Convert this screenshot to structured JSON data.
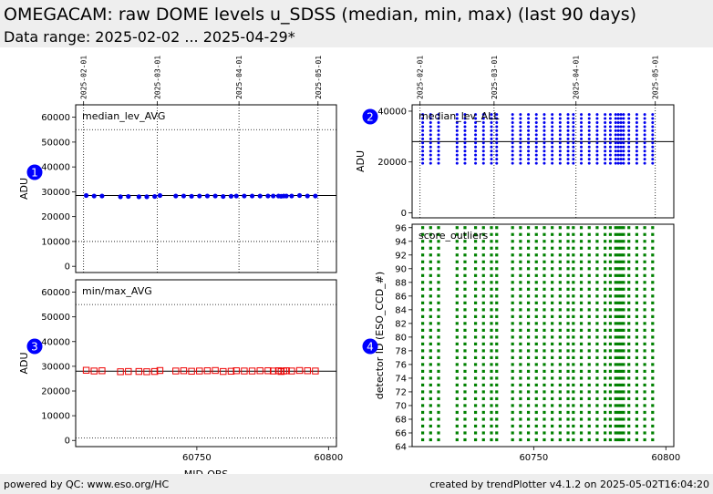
{
  "header": {
    "title": "OMEGACAM: raw DOME levels u_SDSS (median, min, max) (last 90 days)",
    "subtitle": "Data range: 2025-02-02 ... 2025-04-29*"
  },
  "footer": {
    "left": "powered by QC: www.eso.org/HC",
    "right": "created by trendPlotter v4.1.2 on 2025-05-02T16:04:20"
  },
  "colors": {
    "median": "#0000ee",
    "minmax": "#ee0000",
    "outliers": "#008000",
    "badge": "#0000ff",
    "bar": "#eeeeee"
  },
  "chart_data": [
    {
      "id": "1",
      "type": "scatter",
      "annotation": "median_lev_AVG",
      "ylabel": "ADU",
      "xlim": [
        60704,
        60803
      ],
      "ylim": [
        -2500,
        65000
      ],
      "yticks": [
        0,
        10000,
        20000,
        30000,
        40000,
        50000,
        60000
      ],
      "xticks": [],
      "date_ticks": [
        {
          "x": 60707,
          "label": "2025-02-01"
        },
        {
          "x": 60735,
          "label": "2025-03-01"
        },
        {
          "x": 60766,
          "label": "2025-04-01"
        },
        {
          "x": 60796,
          "label": "2025-05-01"
        }
      ],
      "hlines": [
        {
          "y": 28500,
          "style": "solid"
        },
        {
          "y": 55000,
          "style": "dotted"
        },
        {
          "y": 10000,
          "style": "dotted"
        }
      ],
      "series": [
        {
          "marker": "circle",
          "color": "#0000ee",
          "x": [
            60708,
            60711,
            60714,
            60721,
            60724,
            60728,
            60731,
            60734,
            60736,
            60742,
            60745,
            60748,
            60751,
            60754,
            60757,
            60760,
            60763,
            60765,
            60768,
            60771,
            60774,
            60777,
            60779,
            60781,
            60782,
            60783,
            60784,
            60786,
            60789,
            60792,
            60795
          ],
          "y": [
            28500,
            28300,
            28300,
            28000,
            28100,
            28000,
            28000,
            28100,
            28500,
            28300,
            28300,
            28200,
            28300,
            28300,
            28300,
            28100,
            28200,
            28300,
            28300,
            28300,
            28300,
            28300,
            28300,
            28300,
            28200,
            28300,
            28300,
            28300,
            28500,
            28300,
            28300
          ]
        }
      ]
    },
    {
      "id": "2",
      "type": "scatter",
      "annotation": "median_lev_ALL",
      "ylabel": "ADU",
      "xlim": [
        60704,
        60803
      ],
      "ylim": [
        -2000,
        42500
      ],
      "yticks": [
        0,
        20000,
        40000
      ],
      "xticks": [],
      "date_ticks": [
        {
          "x": 60707,
          "label": "2025-02-01"
        },
        {
          "x": 60735,
          "label": "2025-03-01"
        },
        {
          "x": 60766,
          "label": "2025-04-01"
        },
        {
          "x": 60796,
          "label": "2025-05-01"
        }
      ],
      "hlines": [
        {
          "y": 28000,
          "style": "solid"
        }
      ],
      "strips": {
        "x": [
          60708,
          60711,
          60714,
          60721,
          60724,
          60728,
          60731,
          60734,
          60736,
          60742,
          60745,
          60748,
          60751,
          60754,
          60757,
          60760,
          60763,
          60765,
          60768,
          60771,
          60774,
          60777,
          60779,
          60781,
          60782,
          60783,
          60784,
          60786,
          60789,
          60792,
          60795
        ],
        "ymin": 19500,
        "ymax": 39500,
        "color": "#0000ee"
      }
    },
    {
      "id": "3",
      "type": "scatter",
      "annotation": "min/max_AVG",
      "ylabel": "ADU",
      "xlabel": "MJD-OBS",
      "xlim": [
        60704,
        60803
      ],
      "ylim": [
        -2500,
        65000
      ],
      "yticks": [
        0,
        10000,
        20000,
        30000,
        40000,
        50000,
        60000
      ],
      "xticks": [
        60750,
        60800
      ],
      "date_ticks": [],
      "hlines": [
        {
          "y": 28000,
          "style": "solid"
        },
        {
          "y": 55000,
          "style": "dotted"
        },
        {
          "y": 1000,
          "style": "dotted"
        }
      ],
      "series": [
        {
          "marker": "square",
          "color": "#ee0000",
          "x": [
            60708,
            60711,
            60714,
            60721,
            60724,
            60728,
            60731,
            60734,
            60736,
            60742,
            60745,
            60748,
            60751,
            60754,
            60757,
            60760,
            60763,
            60765,
            60768,
            60771,
            60774,
            60777,
            60779,
            60781,
            60782,
            60783,
            60784,
            60786,
            60789,
            60792,
            60795
          ],
          "y": [
            28400,
            28100,
            28200,
            27800,
            27900,
            27900,
            27800,
            27900,
            28300,
            28100,
            28200,
            28000,
            28100,
            28200,
            28300,
            27900,
            28000,
            28200,
            28100,
            28100,
            28200,
            28200,
            28100,
            28200,
            27900,
            28100,
            28200,
            28100,
            28300,
            28200,
            28100
          ]
        }
      ]
    },
    {
      "id": "4",
      "type": "scatter",
      "annotation": "score_outliers",
      "ylabel": "detector ID (ESO_CCD_#)",
      "xlim": [
        60704,
        60803
      ],
      "ylim": [
        64,
        96.5
      ],
      "yticks": [
        64,
        66,
        68,
        70,
        72,
        74,
        76,
        78,
        80,
        82,
        84,
        86,
        88,
        90,
        92,
        94,
        96
      ],
      "xticks": [
        60750,
        60800
      ],
      "date_ticks": [],
      "hlines": [],
      "grid_points": {
        "x": [
          60708,
          60711,
          60714,
          60721,
          60724,
          60728,
          60731,
          60734,
          60736,
          60742,
          60745,
          60748,
          60751,
          60754,
          60757,
          60760,
          60763,
          60765,
          60768,
          60771,
          60774,
          60777,
          60779,
          60781,
          60782,
          60783,
          60784,
          60786,
          60789,
          60792,
          60795
        ],
        "ymin": 65,
        "ymax": 96,
        "color": "#008000"
      }
    }
  ]
}
